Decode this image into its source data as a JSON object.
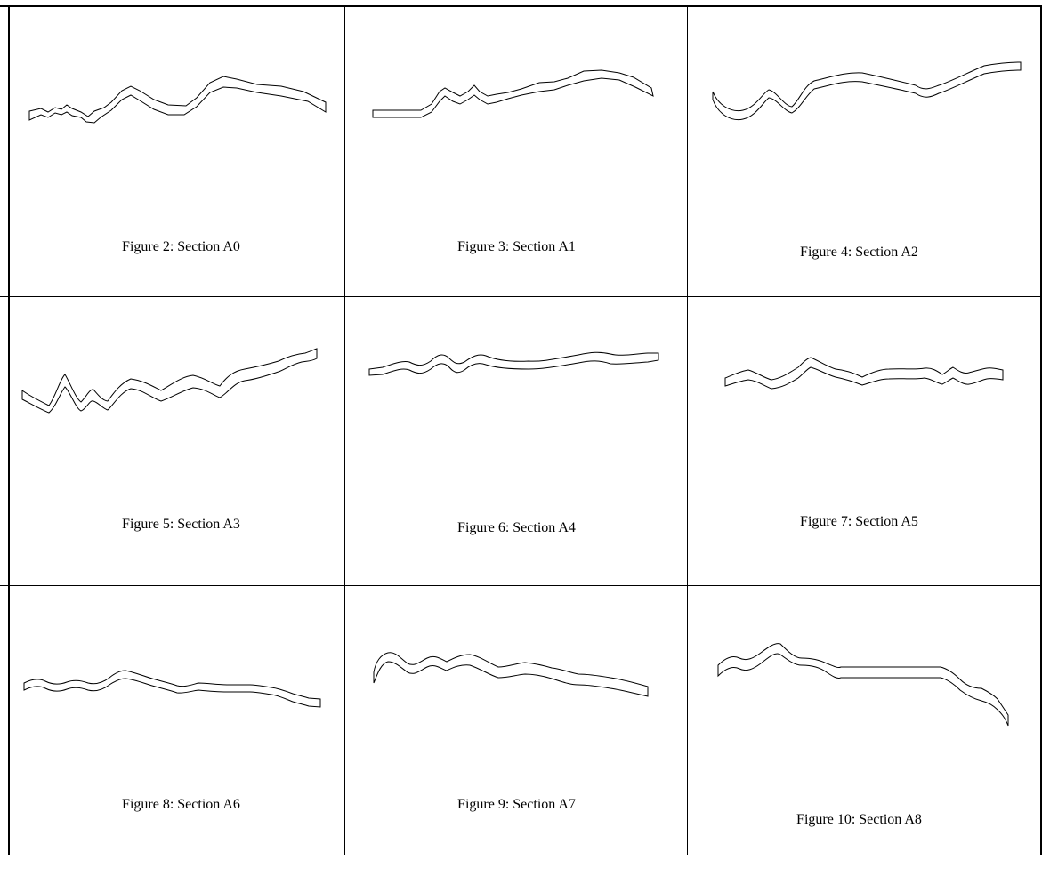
{
  "figures": [
    {
      "caption": "Figure 2: Section A0"
    },
    {
      "caption": "Figure 3: Section A1"
    },
    {
      "caption": "Figure 4: Section A2"
    },
    {
      "caption": "Figure 5: Section A3"
    },
    {
      "caption": "Figure 6: Section A4"
    },
    {
      "caption": "Figure 7: Section A5"
    },
    {
      "caption": "Figure 8: Section A6"
    },
    {
      "caption": "Figure 9: Section A7"
    },
    {
      "caption": "Figure 10: Section A8"
    }
  ]
}
